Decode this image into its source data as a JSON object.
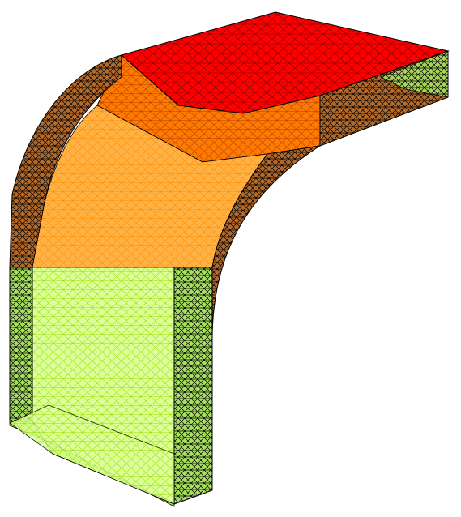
{
  "model": {
    "render_style": "wireframe-mesh",
    "background": "#ffffff",
    "mesh_edge_color": "#000000",
    "zones": [
      {
        "name": "top-slab",
        "color": "#ff0000"
      },
      {
        "name": "upper-bend",
        "color": "#ff6a00"
      },
      {
        "name": "mid-bend",
        "color": "#ffa500"
      },
      {
        "name": "vertical-leg",
        "color": "#b4f000"
      },
      {
        "name": "bottom-face",
        "color": "#8cf000"
      }
    ]
  }
}
